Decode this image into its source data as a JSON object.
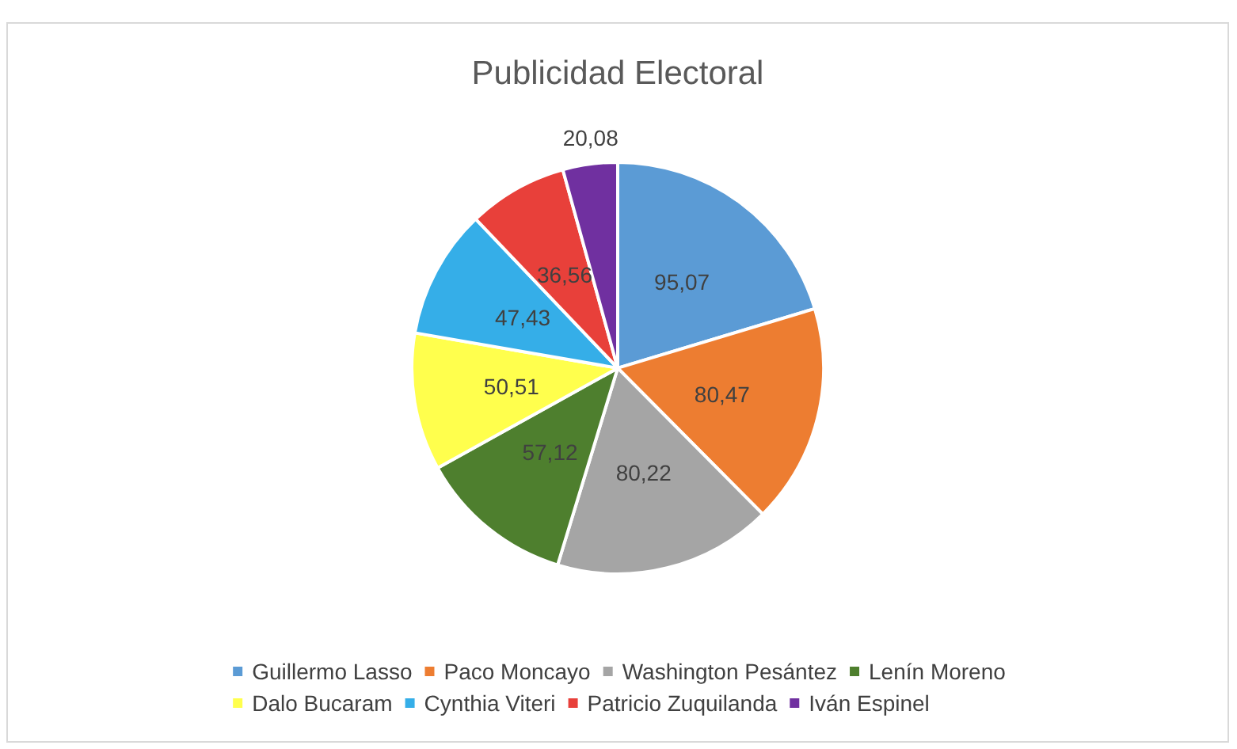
{
  "chart_data": {
    "type": "pie",
    "title": "Publicidad Electoral",
    "categories": [
      "Guillermo Lasso",
      "Paco Moncayo",
      "Washington Pesántez",
      "Lenín Moreno",
      "Dalo Bucaram",
      "Cynthia Viteri",
      "Patricio Zuquilanda",
      "Iván Espinel"
    ],
    "values": [
      95.07,
      80.47,
      80.22,
      57.12,
      50.51,
      47.43,
      36.56,
      20.08
    ],
    "value_labels": [
      "95,07",
      "80,47",
      "80,22",
      "57,12",
      "50,51",
      "47,43",
      "36,56",
      "20,08"
    ],
    "colors": [
      "#5b9bd5",
      "#ed7d31",
      "#a5a5a5",
      "#4e7f2e",
      "#ffff4d",
      "#35aee8",
      "#e8403a",
      "#7030a0"
    ],
    "legend": "bottom"
  }
}
